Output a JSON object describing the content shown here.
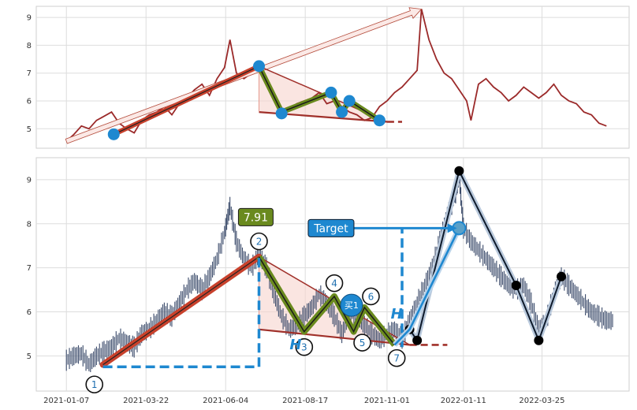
{
  "chart_data": [
    {
      "type": "line",
      "panel": "top",
      "yticks": [
        5,
        6,
        7,
        8,
        9
      ],
      "ylim": [
        4.3,
        9.4
      ],
      "grid": true,
      "series": [
        {
          "color": "#9b2a2a",
          "values": [
            [
              "2021-01-07",
              4.55
            ],
            [
              "2021-01-14",
              4.8
            ],
            [
              "2021-01-21",
              5.1
            ],
            [
              "2021-01-28",
              5.0
            ],
            [
              "2021-02-04",
              5.3
            ],
            [
              "2021-02-11",
              5.45
            ],
            [
              "2021-02-18",
              5.6
            ],
            [
              "2021-02-25",
              5.2
            ],
            [
              "2021-03-04",
              5.0
            ],
            [
              "2021-03-11",
              4.85
            ],
            [
              "2021-03-18",
              5.3
            ],
            [
              "2021-03-25",
              5.5
            ],
            [
              "2021-04-01",
              5.6
            ],
            [
              "2021-04-08",
              5.8
            ],
            [
              "2021-04-15",
              5.5
            ],
            [
              "2021-04-22",
              5.9
            ],
            [
              "2021-04-29",
              6.1
            ],
            [
              "2021-05-06",
              6.4
            ],
            [
              "2021-05-13",
              6.6
            ],
            [
              "2021-05-20",
              6.2
            ],
            [
              "2021-05-27",
              6.8
            ],
            [
              "2021-06-03",
              7.2
            ],
            [
              "2021-06-08",
              8.2
            ],
            [
              "2021-06-14",
              7.0
            ],
            [
              "2021-06-21",
              6.8
            ],
            [
              "2021-06-28",
              7.0
            ],
            [
              "2021-07-05",
              7.25
            ],
            [
              "2021-07-12",
              6.7
            ],
            [
              "2021-07-19",
              6.1
            ],
            [
              "2021-07-26",
              5.6
            ],
            [
              "2021-08-02",
              5.7
            ],
            [
              "2021-08-09",
              5.9
            ],
            [
              "2021-08-16",
              6.0
            ],
            [
              "2021-08-23",
              6.1
            ],
            [
              "2021-08-30",
              6.3
            ],
            [
              "2021-09-06",
              5.9
            ],
            [
              "2021-09-13",
              6.0
            ],
            [
              "2021-09-20",
              5.8
            ],
            [
              "2021-09-27",
              5.6
            ],
            [
              "2021-10-04",
              5.5
            ],
            [
              "2021-10-11",
              5.3
            ],
            [
              "2021-10-18",
              5.4
            ],
            [
              "2021-10-25",
              5.8
            ],
            [
              "2021-11-01",
              6.0
            ],
            [
              "2021-11-08",
              6.3
            ],
            [
              "2021-11-15",
              6.5
            ],
            [
              "2021-11-22",
              6.8
            ],
            [
              "2021-11-29",
              7.1
            ],
            [
              "2021-12-03",
              9.3
            ],
            [
              "2021-12-10",
              8.2
            ],
            [
              "2021-12-17",
              7.5
            ],
            [
              "2021-12-24",
              7.0
            ],
            [
              "2021-12-31",
              6.8
            ],
            [
              "2022-01-07",
              6.4
            ],
            [
              "2022-01-14",
              6.0
            ],
            [
              "2022-01-18",
              5.3
            ],
            [
              "2022-01-25",
              6.6
            ],
            [
              "2022-02-01",
              6.8
            ],
            [
              "2022-02-08",
              6.5
            ],
            [
              "2022-02-15",
              6.3
            ],
            [
              "2022-02-22",
              6.0
            ],
            [
              "2022-03-01",
              6.2
            ],
            [
              "2022-03-08",
              6.5
            ],
            [
              "2022-03-15",
              6.3
            ],
            [
              "2022-03-22",
              6.1
            ],
            [
              "2022-03-29",
              6.3
            ],
            [
              "2022-04-05",
              6.6
            ],
            [
              "2022-04-12",
              6.2
            ],
            [
              "2022-04-19",
              6.0
            ],
            [
              "2022-04-26",
              5.9
            ],
            [
              "2022-05-03",
              5.6
            ],
            [
              "2022-05-10",
              5.5
            ],
            [
              "2022-05-17",
              5.2
            ],
            [
              "2022-05-24",
              5.1
            ]
          ]
        }
      ],
      "overlays": {
        "trend_arrow": [
          [
            "2021-01-07",
            4.55
          ],
          [
            "2021-12-03",
            9.3
          ]
        ],
        "red_line": [
          [
            "2021-02-20",
            4.8
          ],
          [
            "2021-07-05",
            7.25
          ]
        ],
        "pattern_path": [
          [
            "2021-07-05",
            7.25
          ],
          [
            "2021-07-26",
            5.6
          ],
          [
            "2021-09-10",
            6.3
          ],
          [
            "2021-09-20",
            5.6
          ],
          [
            "2021-09-27",
            6.0
          ],
          [
            "2021-10-25",
            5.3
          ]
        ],
        "support_line": [
          [
            "2021-07-05",
            5.6
          ],
          [
            "2021-11-01",
            5.25
          ]
        ],
        "support_ext": [
          [
            "2021-11-01",
            5.25
          ],
          [
            "2021-11-15",
            5.25
          ]
        ],
        "points": [
          [
            "2021-02-20",
            4.8
          ],
          [
            "2021-07-05",
            7.25
          ],
          [
            "2021-07-26",
            5.55
          ],
          [
            "2021-09-10",
            6.3
          ],
          [
            "2021-09-20",
            5.6
          ],
          [
            "2021-09-27",
            6.0
          ],
          [
            "2021-10-25",
            5.3
          ]
        ]
      }
    },
    {
      "type": "candlestick",
      "panel": "bottom",
      "yticks": [
        5,
        6,
        7,
        8,
        9
      ],
      "ylim": [
        4.2,
        9.5
      ],
      "grid": true,
      "xticks": [
        "2021-01-07",
        "2021-03-22",
        "2021-06-04",
        "2021-08-17",
        "2021-11-01",
        "2022-01-11",
        "2022-03-25"
      ],
      "series": [
        {
          "color": "#3a4a6a",
          "values": [
            [
              "2021-01-07",
              4.9
            ],
            [
              "2021-01-14",
              5.0
            ],
            [
              "2021-01-21",
              5.05
            ],
            [
              "2021-01-28",
              4.8
            ],
            [
              "2021-02-04",
              5.0
            ],
            [
              "2021-02-11",
              5.1
            ],
            [
              "2021-02-18",
              5.2
            ],
            [
              "2021-02-25",
              5.4
            ],
            [
              "2021-03-04",
              5.3
            ],
            [
              "2021-03-11",
              5.2
            ],
            [
              "2021-03-18",
              5.5
            ],
            [
              "2021-03-25",
              5.6
            ],
            [
              "2021-04-01",
              5.8
            ],
            [
              "2021-04-08",
              6.0
            ],
            [
              "2021-04-15",
              5.9
            ],
            [
              "2021-04-22",
              6.2
            ],
            [
              "2021-04-29",
              6.5
            ],
            [
              "2021-05-06",
              6.7
            ],
            [
              "2021-05-13",
              6.5
            ],
            [
              "2021-05-20",
              6.8
            ],
            [
              "2021-05-27",
              7.2
            ],
            [
              "2021-06-03",
              7.8
            ],
            [
              "2021-06-08",
              8.4
            ],
            [
              "2021-06-14",
              7.6
            ],
            [
              "2021-06-21",
              7.2
            ],
            [
              "2021-06-28",
              7.0
            ],
            [
              "2021-07-05",
              7.3
            ],
            [
              "2021-07-12",
              7.0
            ],
            [
              "2021-07-19",
              6.4
            ],
            [
              "2021-07-26",
              5.9
            ],
            [
              "2021-08-02",
              5.6
            ],
            [
              "2021-08-09",
              5.7
            ],
            [
              "2021-08-16",
              5.9
            ],
            [
              "2021-08-23",
              6.1
            ],
            [
              "2021-08-30",
              6.4
            ],
            [
              "2021-09-06",
              6.2
            ],
            [
              "2021-09-13",
              5.9
            ],
            [
              "2021-09-20",
              5.5
            ],
            [
              "2021-09-27",
              6.0
            ],
            [
              "2021-10-04",
              5.9
            ],
            [
              "2021-10-11",
              5.7
            ],
            [
              "2021-10-18",
              5.5
            ],
            [
              "2021-10-25",
              5.35
            ],
            [
              "2021-11-01",
              5.5
            ],
            [
              "2021-11-08",
              5.6
            ],
            [
              "2021-11-15",
              5.4
            ],
            [
              "2021-11-22",
              5.8
            ],
            [
              "2021-11-29",
              6.2
            ],
            [
              "2021-12-06",
              6.6
            ],
            [
              "2021-12-13",
              7.0
            ],
            [
              "2021-12-20",
              7.6
            ],
            [
              "2021-12-27",
              8.2
            ],
            [
              "2022-01-03",
              8.6
            ],
            [
              "2022-01-07",
              9.1
            ],
            [
              "2022-01-11",
              7.9
            ],
            [
              "2022-01-18",
              7.6
            ],
            [
              "2022-01-25",
              7.4
            ],
            [
              "2022-02-01",
              7.2
            ],
            [
              "2022-02-08",
              7.0
            ],
            [
              "2022-02-15",
              6.8
            ],
            [
              "2022-02-22",
              6.6
            ],
            [
              "2022-03-01",
              6.5
            ],
            [
              "2022-03-08",
              6.6
            ],
            [
              "2022-03-15",
              6.2
            ],
            [
              "2022-03-22",
              5.6
            ],
            [
              "2022-03-29",
              5.8
            ],
            [
              "2022-04-05",
              6.4
            ],
            [
              "2022-04-12",
              6.8
            ],
            [
              "2022-04-19",
              6.6
            ],
            [
              "2022-04-26",
              6.4
            ],
            [
              "2022-05-03",
              6.2
            ],
            [
              "2022-05-10",
              6.0
            ],
            [
              "2022-05-17",
              5.9
            ],
            [
              "2022-05-24",
              5.8
            ]
          ]
        }
      ],
      "overlays": {
        "red_line": [
          [
            "2021-02-10",
            4.8
          ],
          [
            "2021-07-05",
            7.25
          ]
        ],
        "pattern_path": [
          [
            "2021-07-05",
            7.25
          ],
          [
            "2021-08-16",
            5.55
          ],
          [
            "2021-09-13",
            6.35
          ],
          [
            "2021-10-01",
            5.55
          ],
          [
            "2021-10-11",
            6.1
          ],
          [
            "2021-11-08",
            5.25
          ]
        ],
        "support_line": [
          [
            "2021-07-05",
            5.6
          ],
          [
            "2021-11-22",
            5.25
          ]
        ],
        "support_ext": [
          [
            "2021-11-22",
            5.25
          ],
          [
            "2021-12-27",
            5.25
          ]
        ],
        "blue_path": [
          [
            "2021-11-08",
            5.25
          ],
          [
            "2021-11-22",
            5.6
          ],
          [
            "2022-01-07",
            7.9
          ]
        ],
        "black_path": [
          [
            "2021-11-22",
            5.6
          ],
          [
            "2021-11-29",
            5.35
          ],
          [
            "2022-01-07",
            9.2
          ],
          [
            "2022-03-01",
            6.6
          ],
          [
            "2022-03-22",
            5.35
          ],
          [
            "2022-04-12",
            6.8
          ]
        ],
        "black_points": [
          [
            "2021-11-22",
            5.6
          ],
          [
            "2021-11-29",
            5.35
          ],
          [
            "2022-01-07",
            9.2
          ],
          [
            "2022-03-01",
            6.6
          ],
          [
            "2022-03-22",
            5.35
          ],
          [
            "2022-04-12",
            6.8
          ]
        ],
        "dashed_bracket_1": [
          [
            "2021-02-10",
            4.75
          ],
          [
            "2021-07-05",
            4.75
          ],
          [
            "2021-07-05",
            7.25
          ]
        ],
        "dashed_bracket_2": [
          [
            "2021-11-15",
            5.2
          ],
          [
            "2021-11-15",
            7.9
          ]
        ],
        "target_arrow": [
          [
            "2021-09-25",
            7.9
          ],
          [
            "2022-01-05",
            7.9
          ]
        ],
        "numbered_points": [
          {
            "n": "1",
            "at": [
              "2021-02-02",
              4.35
            ]
          },
          {
            "n": "2",
            "at": [
              "2021-07-05",
              7.6
            ]
          },
          {
            "n": "3",
            "at": [
              "2021-08-16",
              5.2
            ]
          },
          {
            "n": "4",
            "at": [
              "2021-09-13",
              6.65
            ]
          },
          {
            "n": "5",
            "at": [
              "2021-10-09",
              5.3
            ]
          },
          {
            "n": "6",
            "at": [
              "2021-10-17",
              6.35
            ]
          },
          {
            "n": "7",
            "at": [
              "2021-11-10",
              4.95
            ]
          }
        ],
        "buy_point": {
          "label": "买1",
          "at": [
            "2021-09-29",
            6.15
          ]
        },
        "price_label": {
          "text": "7.91",
          "at": [
            "2021-07-02",
            8.15
          ]
        },
        "target_label": {
          "text": "Target",
          "at": [
            "2021-09-10",
            7.9
          ]
        },
        "h_labels": [
          {
            "text": "H",
            "at": [
              "2021-08-08",
              5.15
            ]
          },
          {
            "text": "H",
            "at": [
              "2021-11-10",
              5.85
            ]
          }
        ]
      }
    }
  ]
}
